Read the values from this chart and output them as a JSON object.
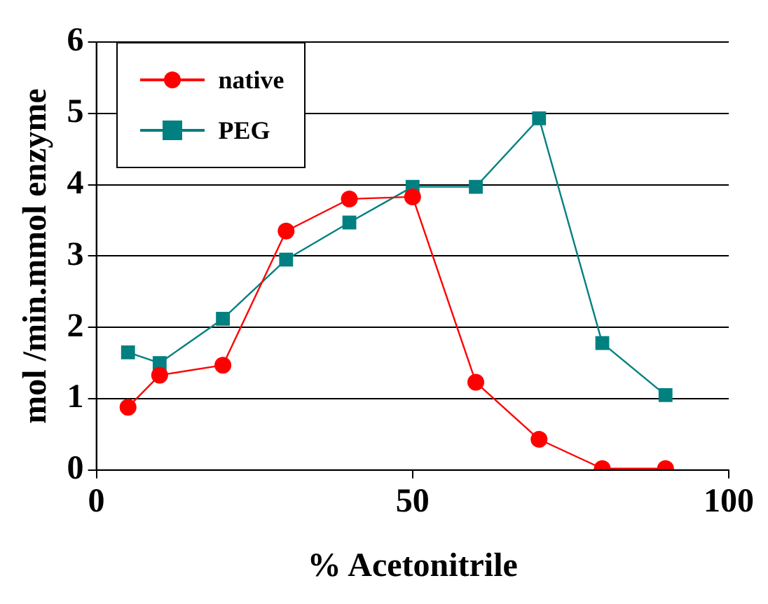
{
  "chart_data": {
    "type": "line",
    "xlabel": "% Acetonitrile",
    "ylabel": "mol /min.mmol enzyme",
    "x": [
      5,
      10,
      20,
      30,
      40,
      50,
      60,
      70,
      80,
      90
    ],
    "series": [
      {
        "name": "native",
        "color": "#ff0000",
        "marker": "circle",
        "values": [
          0.88,
          1.33,
          1.47,
          3.35,
          3.8,
          3.83,
          1.23,
          0.43,
          0.02,
          0.02
        ]
      },
      {
        "name": "PEG",
        "color": "#008080",
        "marker": "square",
        "values": [
          1.65,
          1.5,
          2.12,
          2.95,
          3.47,
          3.97,
          3.97,
          4.93,
          1.78,
          1.05
        ]
      }
    ],
    "xlim": [
      0,
      100
    ],
    "xticks": [
      0,
      50,
      100
    ],
    "ylim": [
      0,
      6
    ],
    "yticks": [
      0,
      1,
      2,
      3,
      4,
      5,
      6
    ],
    "grid": "y",
    "legend": "top left",
    "line_style": "solid"
  }
}
